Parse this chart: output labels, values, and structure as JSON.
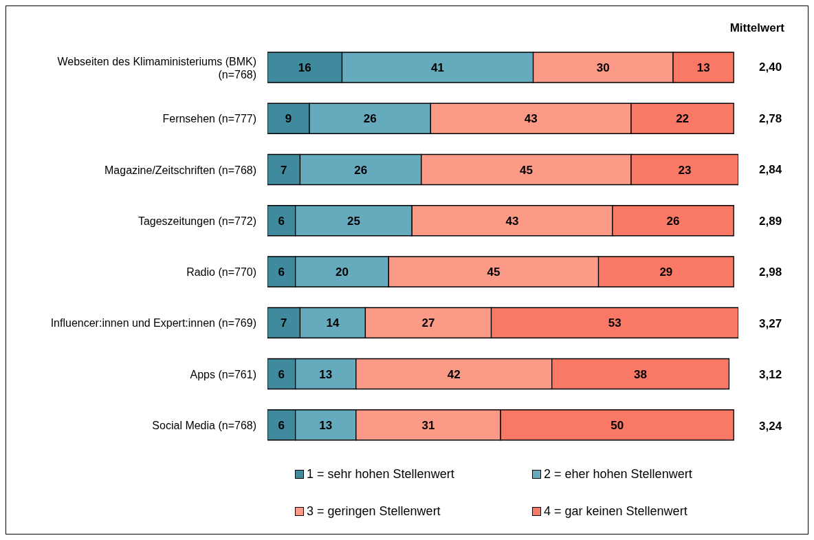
{
  "chart_data": {
    "type": "bar",
    "orientation": "horizontal",
    "stacked": true,
    "data_labels": true,
    "legend": "bottom",
    "categories": [
      "Webseiten des Klimaministeriums (BMK) (n=768)",
      "Fernsehen (n=777)",
      "Magazine/Zeitschriften (n=768)",
      "Tageszeitungen (n=772)",
      "Radio (n=770)",
      "Influencer:innen und Expert:innen (n=769)",
      "Apps (n=761)",
      "Social Media (n=768)"
    ],
    "series": [
      {
        "name": "1 = sehr hohen Stellenwert",
        "color": "#3f8a9c",
        "values": [
          16,
          9,
          7,
          6,
          6,
          7,
          6,
          6
        ]
      },
      {
        "name": "2 = eher hohen Stellenwert",
        "color": "#66abbd",
        "values": [
          41,
          26,
          26,
          25,
          20,
          14,
          13,
          13
        ]
      },
      {
        "name": "3 = geringen Stellenwert",
        "color": "#fc9a88",
        "values": [
          30,
          43,
          45,
          43,
          45,
          27,
          42,
          31
        ]
      },
      {
        "name": "4 = gar keinen Stellenwert",
        "color": "#fa7866",
        "values": [
          13,
          22,
          23,
          26,
          29,
          53,
          38,
          50
        ]
      }
    ],
    "annotations": [
      "Mittelwert",
      "2,40",
      "2,78",
      "2,84",
      "2,89",
      "2,98",
      "3,27",
      "3,12",
      "3,24"
    ]
  }
}
